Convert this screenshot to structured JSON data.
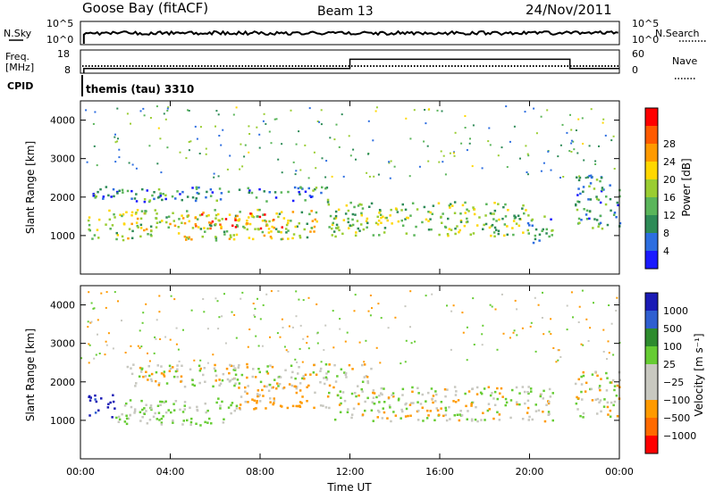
{
  "header": {
    "station": "Goose Bay (fitACF)",
    "beam": "Beam 13",
    "date": "24/Nov/2011"
  },
  "strip_labels": {
    "nsky": "N.Sky",
    "nsearch": "N.Search",
    "freq_line1": "Freq.",
    "freq_line2": "[MHz]",
    "nave": "Nave",
    "cpid": "CPID",
    "cpid_value": "themis (tau) 3310"
  },
  "strip_ticks": {
    "noise_top_left": "10^5",
    "noise_bottom_left": "10^0",
    "noise_top_right": "10^5",
    "noise_bottom_right": "10^0",
    "freq_top": "18",
    "freq_bottom": "8",
    "nave_top": "60",
    "nave_bottom": "0"
  },
  "x_axis": {
    "title": "Time UT",
    "ticks": [
      "00:00",
      "04:00",
      "08:00",
      "12:00",
      "16:00",
      "20:00",
      "00:00"
    ]
  },
  "power_panel": {
    "ylabel": "Slant Range [km]",
    "yticks": [
      "1000",
      "2000",
      "3000",
      "4000"
    ],
    "colorbar_label": "Power [dB]",
    "colorbar_ticks": [
      "4",
      "8",
      "12",
      "16",
      "20",
      "24",
      "28"
    ],
    "colors": [
      "#1a1aff",
      "#2d6ee0",
      "#2e8b57",
      "#5ab55a",
      "#9acd32",
      "#ffd700",
      "#ff9a00",
      "#ff5a00",
      "#ff0000"
    ]
  },
  "velocity_panel": {
    "ylabel": "Slant Range [km]",
    "yticks": [
      "1000",
      "2000",
      "3000",
      "4000"
    ],
    "colorbar_label": "Velocity [m s⁻¹]",
    "colorbar_ticks": [
      "1000",
      "500",
      "100",
      "25",
      "−25",
      "−100",
      "−500",
      "−1000"
    ],
    "colors": [
      "#1a1ab5",
      "#2f5fd0",
      "#2e8b2e",
      "#66cc33",
      "#c8c8c0",
      "#c8c8c0",
      "#ff9a00",
      "#ff6a00",
      "#ff0000"
    ]
  },
  "chart_data": {
    "type": "heatmap",
    "xlim_hours": [
      0,
      24
    ],
    "ylim_km": [
      0,
      4500
    ],
    "frequency_mhz": [
      {
        "from_hour": 0.15,
        "to_hour": 12.0,
        "value": 10
      },
      {
        "from_hour": 12.0,
        "to_hour": 21.8,
        "value": 14
      },
      {
        "from_hour": 21.8,
        "to_hour": 24,
        "value": 10
      }
    ],
    "nave_approx": 8,
    "power_bands": [
      {
        "t0": 0.3,
        "t1": 10.5,
        "r0": 900,
        "r1": 1700,
        "dB": 18
      },
      {
        "t0": 5.0,
        "t1": 9.0,
        "r0": 1200,
        "r1": 1600,
        "dB": 26
      },
      {
        "t0": 0.3,
        "t1": 11.0,
        "r0": 1900,
        "r1": 2300,
        "dB": 10
      },
      {
        "t0": 11.0,
        "t1": 19.8,
        "r0": 1000,
        "r1": 1900,
        "dB": 16
      },
      {
        "t0": 19.8,
        "t1": 21.0,
        "r0": 800,
        "r1": 1600,
        "dB": 12
      },
      {
        "t0": 22.0,
        "t1": 24.0,
        "r0": 1200,
        "r1": 2600,
        "dB": 12
      }
    ],
    "velocity_bands": [
      {
        "t0": 0.3,
        "t1": 1.5,
        "r0": 1100,
        "r1": 1700,
        "v": 800
      },
      {
        "t0": 1.5,
        "t1": 7.0,
        "r0": 900,
        "r1": 1600,
        "v": 100
      },
      {
        "t0": 7.0,
        "t1": 11.0,
        "r0": 1300,
        "r1": 2000,
        "v": -100
      },
      {
        "t0": 2.0,
        "t1": 13.0,
        "r0": 1900,
        "r1": 2500,
        "v": 0
      },
      {
        "t0": 11.0,
        "t1": 21.0,
        "r0": 1000,
        "r1": 1900,
        "v": 0
      },
      {
        "t0": 22.0,
        "t1": 24.0,
        "r0": 1100,
        "r1": 2300,
        "v": 0
      }
    ]
  }
}
